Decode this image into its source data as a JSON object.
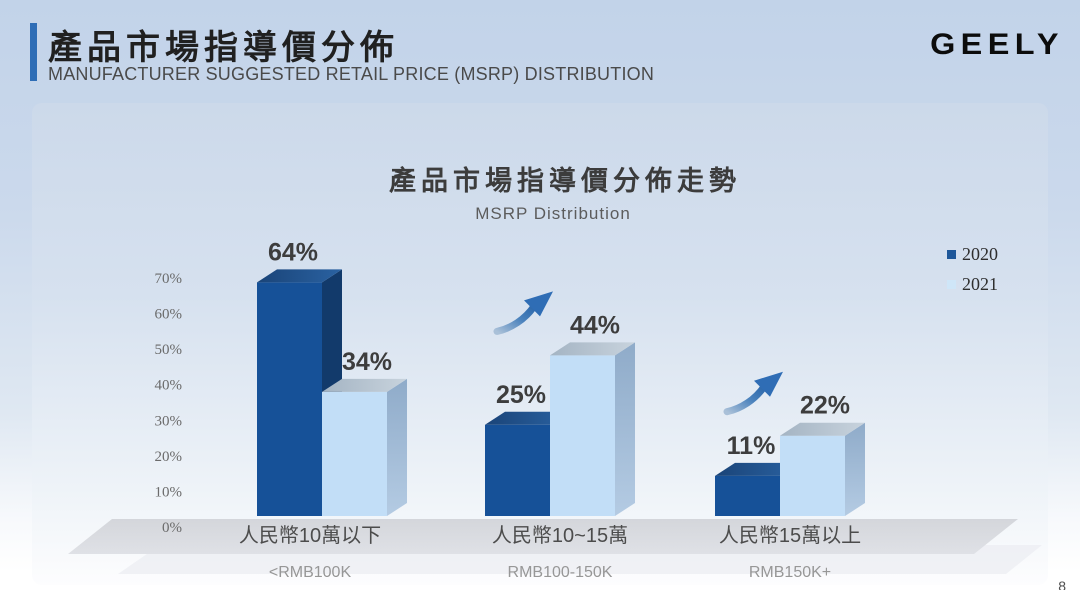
{
  "header": {
    "title_zh": "產品市場指導價分佈",
    "subtitle_en": "MANUFACTURER SUGGESTED RETAIL PRICE (MSRP) DISTRIBUTION",
    "brand": "GEELY"
  },
  "page": {
    "number": "8"
  },
  "colors": {
    "accent": "#2e6db6",
    "dark_front": "#165198",
    "dark_side": "#123a6b",
    "dark_top": "#1a4478",
    "light_front": "#c2def7",
    "light_side": "#9ab4d0",
    "light_top": "#b0bfcc",
    "legend_dark": "#1e5799",
    "legend_light": "#cfe6f8",
    "floor": "#d8dade",
    "floor_lower": "#edeff3",
    "arrow_from": "#9db9d4",
    "arrow_to": "#2f6db5",
    "value_label": "#3d3d3d",
    "axis_label": "#6b6b6b",
    "category_zh": "#4c4c4c",
    "category_en": "#979797"
  },
  "chart_data": {
    "type": "bar",
    "title": "產品市場指導價分佈走勢",
    "subtitle": "MSRP Distribution",
    "categories": [
      "人民幣10萬以下",
      "人民幣10~15萬",
      "人民幣15萬以上"
    ],
    "categories_en": [
      "<RMB100K",
      "RMB100-150K",
      "RMB150K+"
    ],
    "series": [
      {
        "name": "2020",
        "values": [
          64,
          25,
          11
        ]
      },
      {
        "name": "2021",
        "values": [
          34,
          44,
          22
        ]
      }
    ],
    "value_suffix": "%",
    "y_ticks": [
      "0%",
      "10%",
      "20%",
      "30%",
      "40%",
      "50%",
      "60%",
      "70%"
    ],
    "ylim": [
      0,
      70
    ],
    "grid": false,
    "legend_position": "right",
    "growth_arrows": [
      false,
      true,
      true
    ],
    "style": "3d-bars"
  }
}
